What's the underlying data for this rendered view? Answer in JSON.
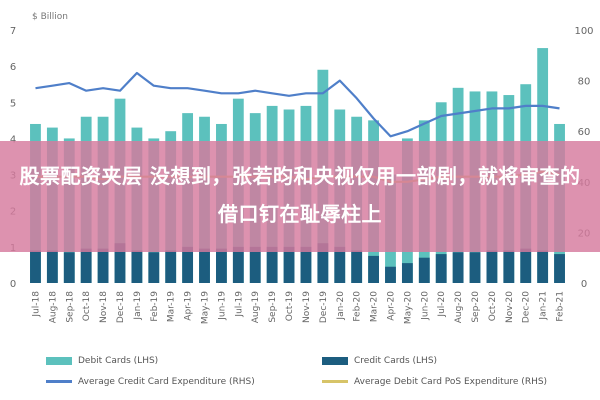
{
  "chart_data": {
    "type": "bar",
    "title": "",
    "y_left_unit": "$ Billion",
    "ylim_left": [
      0,
      7
    ],
    "yticks_left": [
      "0",
      "1",
      "2",
      "3",
      "4",
      "5",
      "6",
      "7"
    ],
    "ylim_right": [
      0,
      100
    ],
    "yticks_right": [
      "0",
      "20",
      "40",
      "60",
      "80",
      "100"
    ],
    "categories": [
      "Jul-18",
      "Aug-18",
      "Sep-18",
      "Oct-18",
      "Nov-18",
      "Dec-18",
      "Jan-19",
      "Feb-19",
      "Mar-19",
      "Apr-19",
      "May-19",
      "Jun-19",
      "Jul-19",
      "Aug-19",
      "Sep-19",
      "Oct-19",
      "Nov-19",
      "Dec-19",
      "Jan-20",
      "Feb-20",
      "Mar-20",
      "Apr-20",
      "May-20",
      "Jun-20",
      "Jul-20",
      "Aug-20",
      "Sep-20",
      "Oct-20",
      "Nov-20",
      "Dec-20",
      "Jan-21",
      "Feb-21"
    ],
    "series": [
      {
        "name": "Debit Cards (LHS)",
        "kind": "bar",
        "axis": "left",
        "color": "#5cc1bd",
        "values": [
          4.4,
          4.3,
          4.0,
          4.6,
          4.6,
          5.1,
          4.3,
          4.0,
          4.2,
          4.7,
          4.6,
          4.4,
          5.1,
          4.7,
          4.9,
          4.8,
          4.9,
          5.9,
          4.8,
          4.6,
          4.5,
          3.0,
          4.0,
          4.5,
          5.0,
          5.4,
          5.3,
          5.3,
          5.2,
          5.5,
          6.5,
          4.4
        ]
      },
      {
        "name": "Credit Cards (LHS)",
        "kind": "bar",
        "axis": "left",
        "color": "#1c5d7f",
        "values": [
          0.9,
          0.9,
          0.85,
          0.95,
          0.95,
          1.1,
          0.9,
          0.85,
          0.9,
          1.0,
          0.95,
          0.95,
          1.0,
          1.0,
          1.0,
          1.0,
          1.0,
          1.1,
          1.0,
          0.9,
          0.75,
          0.45,
          0.55,
          0.7,
          0.8,
          0.85,
          0.85,
          0.9,
          0.9,
          0.95,
          0.9,
          0.8
        ]
      },
      {
        "name": "Average Credit Card Expenditure (RHS)",
        "kind": "line",
        "axis": "right",
        "color": "#4f7fc9",
        "values": [
          77,
          78,
          79,
          76,
          77,
          76,
          83,
          78,
          77,
          77,
          76,
          75,
          75,
          76,
          75,
          74,
          75,
          75,
          80,
          73,
          65,
          58,
          60,
          63,
          66,
          67,
          68,
          69,
          69,
          70,
          70,
          69
        ]
      },
      {
        "name": "Average Debit Card PoS Expenditure (RHS)",
        "kind": "line",
        "axis": "right",
        "color": "#d7c468",
        "values": [
          42,
          42,
          42,
          42,
          41,
          42,
          42,
          42,
          42,
          42,
          42,
          42,
          42,
          42,
          42,
          42,
          41,
          42,
          42,
          42,
          42,
          40,
          40,
          41,
          42,
          42,
          42,
          42,
          42,
          43,
          44,
          43
        ]
      }
    ],
    "grid": false,
    "legend_position": "bottom"
  },
  "overlay": {
    "banner_text": "股票配资夹层 没想到，张若昀和央视仅用一部剧，就将审查的借口钉在耻辱柱上"
  }
}
